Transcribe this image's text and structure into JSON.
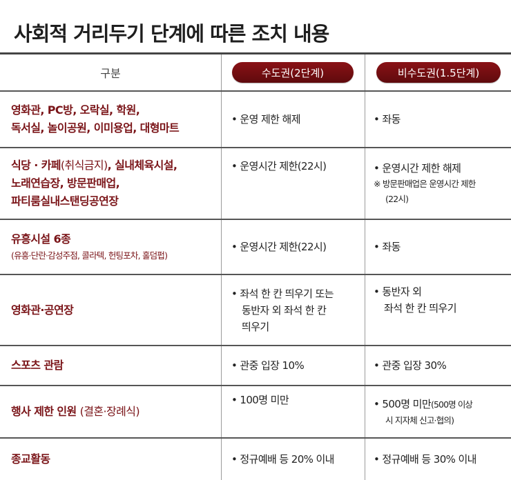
{
  "title": "사회적 거리두기 단계에 따른 조치 내용",
  "header": {
    "gubun": "구분",
    "col1": "수도권(2단계)",
    "col2": "비수도권(1.5단계)"
  },
  "rows": [
    {
      "cat": [
        "영화관, PC방, 오락실, 학원,",
        "독서실, 놀이공원, 이미용업, 대형마트"
      ],
      "metro": "• 운영 제한 해제",
      "nonmetro": "• 좌동"
    },
    {
      "cat_line1_a": "식당 · 카페",
      "cat_line1_b": "(취식금지)",
      "cat_line1_c": ", 실내체육시설,",
      "cat": [
        "노래연습장, 방문판매업,",
        "파티룸실내스탠딩공연장"
      ],
      "metro": "• 운영시간 제한(22시)",
      "nonmetro": "• 운영시간 제한 해제",
      "nonmetro_note": [
        "※ 방문판매업은 운영시간 제한",
        "(22시)"
      ]
    },
    {
      "cat": [
        "유흥시설 6종"
      ],
      "cat_note": "(유흥·단란·감성주점, 콜라텍, 헌팅포차, 홀덤펍)",
      "metro": "• 운영시간 제한(22시)",
      "nonmetro": "• 좌동"
    },
    {
      "cat": [
        "영화관·공연장"
      ],
      "metro": [
        "• 좌석 한 칸 띄우기 또는",
        "동반자 외 좌석 한 칸",
        "띄우기"
      ],
      "nonmetro": [
        "• 동반자 외",
        "좌석 한 칸 띄우기"
      ]
    },
    {
      "cat": [
        "스포츠 관람"
      ],
      "metro": "• 관중 입장 10%",
      "nonmetro": "• 관중 입장 30%"
    },
    {
      "cat_a": "행사 제한 인원 ",
      "cat_b": "(결혼·장례식)",
      "metro": "• 100명 미만",
      "nonmetro_a": "• 500명 미만",
      "nonmetro_b": "(500명 이상",
      "nonmetro_c": "시 지자체 신고·협의)"
    },
    {
      "cat": [
        "종교활동"
      ],
      "metro": "• 정규예배 등 20% 이내",
      "nonmetro": "• 정규예배 등 30% 이내"
    }
  ],
  "colors": {
    "accent": "#7a1418",
    "pill": "#6e0d10",
    "rule": "#555555"
  }
}
